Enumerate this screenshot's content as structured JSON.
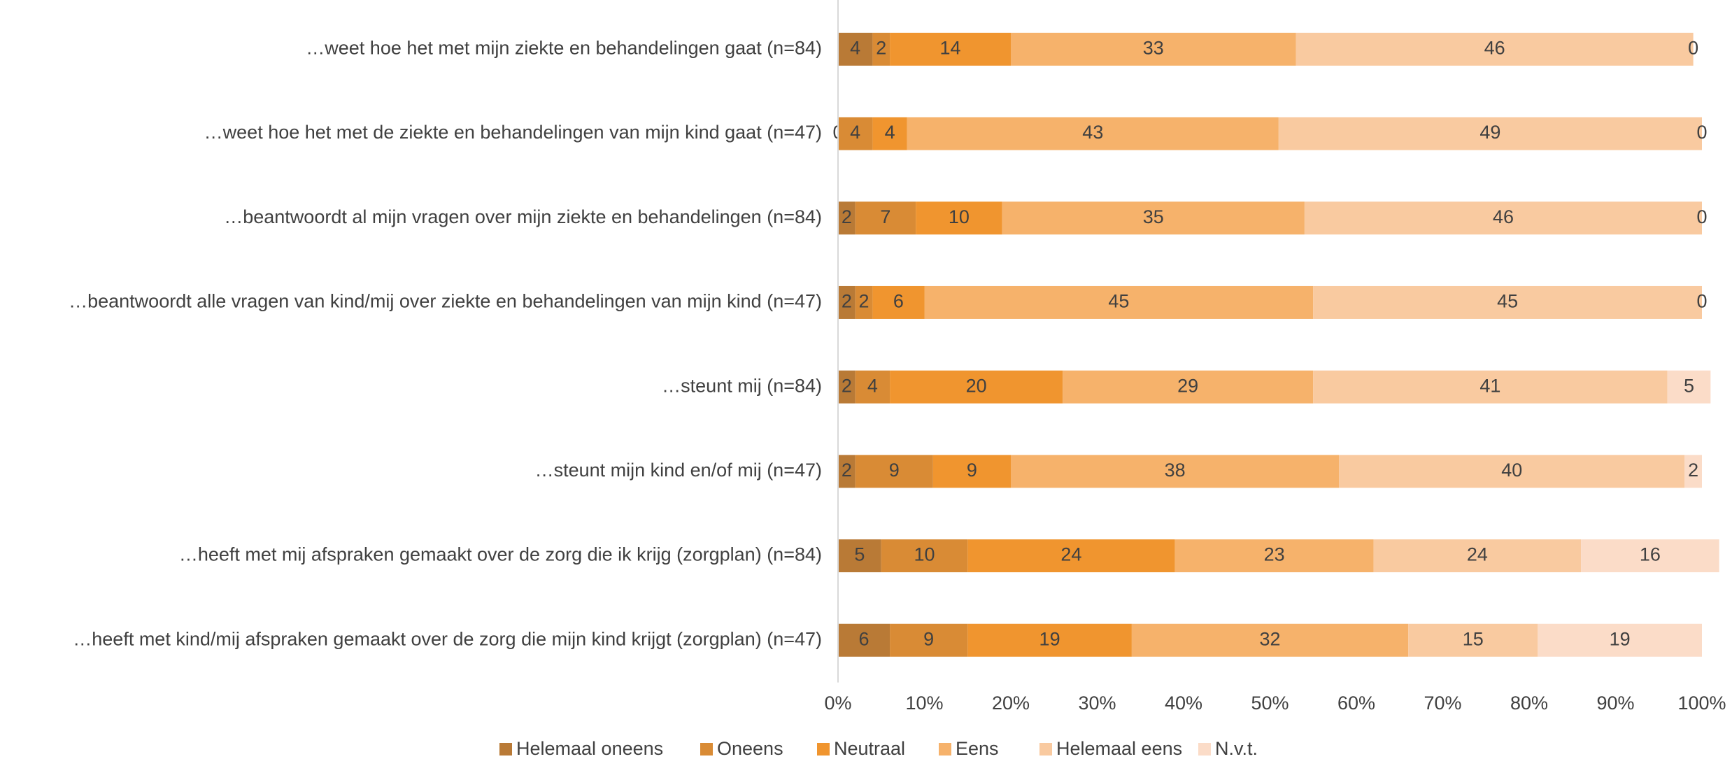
{
  "chart_data": {
    "type": "stacked_bar_horizontal",
    "categories": [
      "…weet hoe het met mijn ziekte en behandelingen gaat (n=84)",
      "…weet hoe het met de ziekte en behandelingen van mijn kind gaat (n=47)",
      "…beantwoordt al mijn vragen over mijn ziekte en behandelingen (n=84)",
      "…beantwoordt alle vragen van kind/mij over ziekte en behandelingen van mijn kind (n=47)",
      "…steunt mij (n=84)",
      "…steunt mijn kind en/of mij (n=47)",
      "…heeft met mij afspraken gemaakt over de zorg die ik krijg (zorgplan) (n=84)",
      "…heeft met kind/mij afspraken gemaakt over de zorg die mijn kind krijgt (zorgplan) (n=47)"
    ],
    "series": [
      {
        "name": "Helemaal oneens",
        "color": "#b97a36",
        "values": [
          4,
          0,
          2,
          2,
          2,
          2,
          5,
          6
        ]
      },
      {
        "name": "Oneens",
        "color": "#d98b35",
        "values": [
          2,
          4,
          7,
          2,
          4,
          9,
          10,
          9
        ]
      },
      {
        "name": "Neutraal",
        "color": "#f0952f",
        "values": [
          14,
          4,
          10,
          6,
          20,
          9,
          24,
          19
        ]
      },
      {
        "name": "Eens",
        "color": "#f6b26b",
        "values": [
          33,
          43,
          35,
          45,
          29,
          38,
          23,
          32
        ]
      },
      {
        "name": "Helemaal eens",
        "color": "#f9caa0",
        "values": [
          46,
          49,
          46,
          45,
          41,
          40,
          24,
          15
        ]
      },
      {
        "name": "N.v.t.",
        "color": "#fbdcc8",
        "values": [
          0,
          0,
          0,
          0,
          5,
          2,
          16,
          19
        ]
      }
    ],
    "xlim": [
      0,
      100
    ],
    "xticks": [
      {
        "value": 0,
        "label": "0%"
      },
      {
        "value": 10,
        "label": "10%"
      },
      {
        "value": 20,
        "label": "20%"
      },
      {
        "value": 30,
        "label": "30%"
      },
      {
        "value": 40,
        "label": "40%"
      },
      {
        "value": 50,
        "label": "50%"
      },
      {
        "value": 60,
        "label": "60%"
      },
      {
        "value": 70,
        "label": "70%"
      },
      {
        "value": 80,
        "label": "80%"
      },
      {
        "value": 90,
        "label": "90%"
      },
      {
        "value": 100,
        "label": "100%"
      }
    ],
    "legend": "bottom"
  }
}
